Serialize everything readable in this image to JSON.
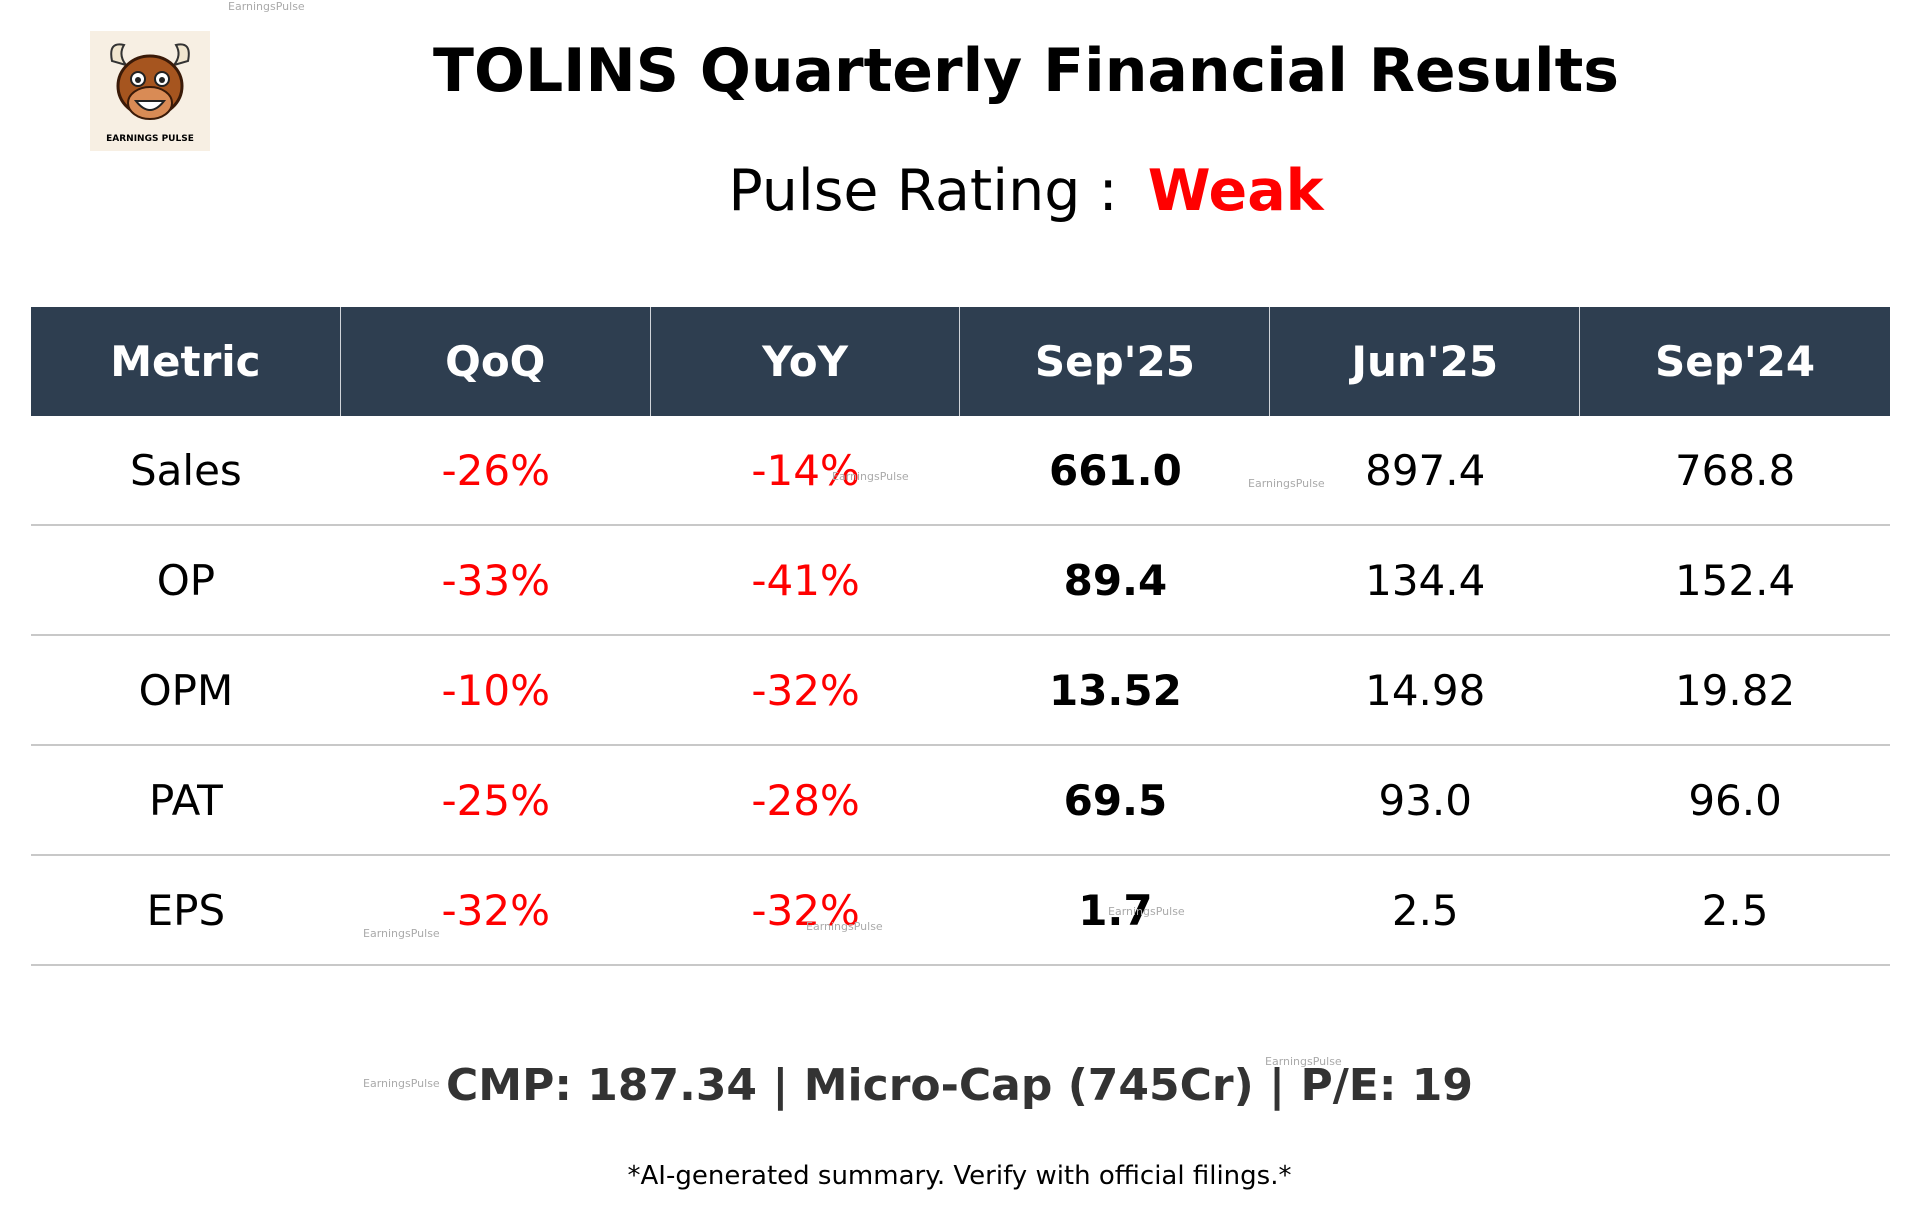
{
  "header": {
    "title": "TOLINS Quarterly Financial Results",
    "rating_label": "Pulse Rating :",
    "rating": "Weak",
    "logo_text": "EARNINGS PULSE"
  },
  "watermark": "EarningsPulse",
  "table": {
    "columns": [
      "Metric",
      "QoQ",
      "YoY",
      "Sep'25",
      "Jun'25",
      "Sep'24"
    ],
    "rows": [
      [
        "Sales",
        "-26%",
        "-14%",
        "661.0",
        "897.4",
        "768.8"
      ],
      [
        "OP",
        "-33%",
        "-41%",
        "89.4",
        "134.4",
        "152.4"
      ],
      [
        "OPM",
        "-10%",
        "-32%",
        "13.52",
        "14.98",
        "19.82"
      ],
      [
        "PAT",
        "-25%",
        "-28%",
        "69.5",
        "93.0",
        "96.0"
      ],
      [
        "EPS",
        "-32%",
        "-32%",
        "1.7",
        "2.5",
        "2.5"
      ]
    ]
  },
  "footer": {
    "summary": "CMP: 187.34 | Micro-Cap (745Cr) | P/E: 19",
    "disclaimer": "*AI-generated summary. Verify with official filings.*"
  }
}
